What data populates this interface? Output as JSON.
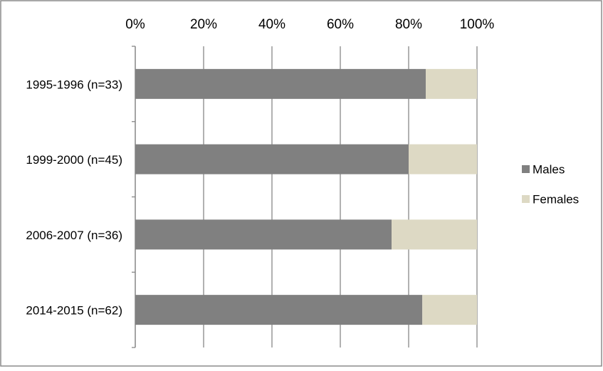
{
  "chart_data": {
    "type": "stacked-bar-horizontal",
    "categories": [
      "1995-1996 (n=33)",
      "1999-2000 (n=45)",
      "2006-2007 (n=36)",
      "2014-2015 (n=62)"
    ],
    "series": [
      {
        "name": "Males",
        "color": "#808080",
        "values": [
          85,
          80,
          75,
          84
        ]
      },
      {
        "name": "Females",
        "color": "#ddd9c4",
        "values": [
          15,
          20,
          25,
          16
        ]
      }
    ],
    "xlim": [
      0,
      100
    ],
    "xticks": [
      {
        "value": 0,
        "label": "0%"
      },
      {
        "value": 20,
        "label": "20%"
      },
      {
        "value": 40,
        "label": "40%"
      },
      {
        "value": 60,
        "label": "60%"
      },
      {
        "value": 80,
        "label": "80%"
      },
      {
        "value": 100,
        "label": "100%"
      }
    ],
    "grid": true,
    "legend": "right"
  }
}
